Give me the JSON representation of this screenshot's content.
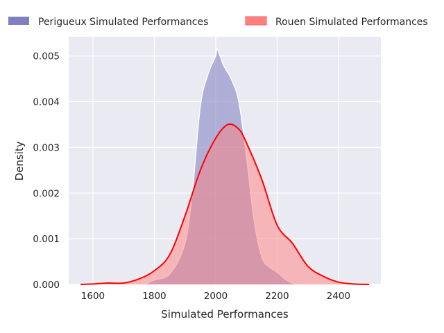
{
  "chart_data": {
    "type": "area",
    "title": "",
    "xlabel": "Simulated Performances",
    "ylabel": "Density",
    "xlim": [
      1521,
      2538
    ],
    "ylim": [
      0,
      0.00542
    ],
    "xticks": [
      1600,
      1800,
      2000,
      2200,
      2400
    ],
    "xtick_labels": [
      "1600",
      "1800",
      "2000",
      "2200",
      "2400"
    ],
    "yticks": [
      0,
      0.001,
      0.002,
      0.003,
      0.004,
      0.005
    ],
    "ytick_labels": [
      "0.000",
      "0.001",
      "0.002",
      "0.003",
      "0.004",
      "0.005"
    ],
    "grid": true,
    "legend_placement": "top",
    "series": [
      {
        "name": "Perigueux Simulated Performances",
        "color": "#8080c0",
        "fill": "#7b7bc0",
        "edge": "#ffffff",
        "x": [
          1770,
          1800,
          1850,
          1900,
          1925,
          1950,
          1975,
          2000,
          2005,
          2025,
          2050,
          2075,
          2100,
          2125,
          2150,
          2175,
          2200,
          2225,
          2250,
          2270
        ],
        "y": [
          0,
          0.0001,
          0.00023,
          0.0009,
          0.0021,
          0.0039,
          0.0046,
          0.005,
          0.00515,
          0.0048,
          0.0045,
          0.004,
          0.0028,
          0.0014,
          0.0006,
          0.00038,
          0.00027,
          0.00012,
          3e-05,
          0
        ]
      },
      {
        "name": "Rouen Simulated Performances",
        "color": "#ff0000",
        "fill": "#ff7f7f",
        "edge": "#ff0000",
        "x": [
          1560,
          1600,
          1650,
          1700,
          1750,
          1800,
          1850,
          1900,
          1950,
          2000,
          2040,
          2075,
          2100,
          2150,
          2200,
          2250,
          2300,
          2350,
          2400,
          2450,
          2500
        ],
        "y": [
          0,
          1e-05,
          3e-05,
          3e-05,
          0.00012,
          0.0003,
          0.00065,
          0.0015,
          0.0025,
          0.0032,
          0.0035,
          0.0034,
          0.0031,
          0.0023,
          0.0013,
          0.0009,
          0.0004,
          0.00018,
          5e-05,
          1e-05,
          0
        ]
      }
    ]
  }
}
